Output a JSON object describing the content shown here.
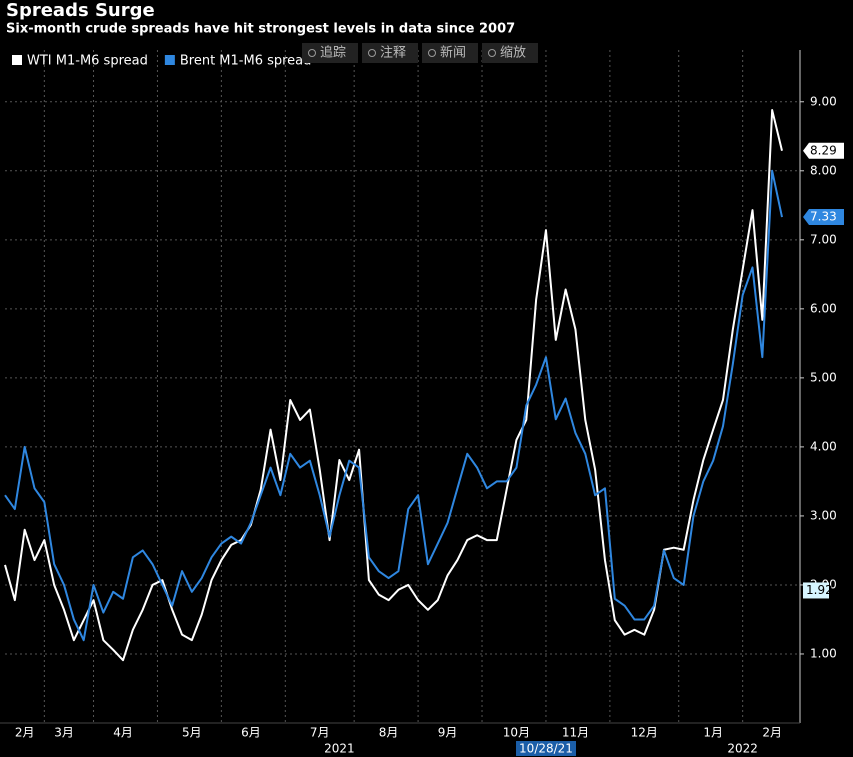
{
  "chart_data": {
    "type": "line",
    "title": "Spreads Surge",
    "subtitle": "Six-month crude spreads have hit strongest levels in data since 2007",
    "categories": [
      null,
      null,
      "2月",
      null,
      null,
      null,
      "3月",
      null,
      null,
      null,
      null,
      null,
      "4月",
      null,
      null,
      null,
      null,
      null,
      null,
      "5月",
      null,
      null,
      null,
      null,
      null,
      "6月",
      null,
      null,
      null,
      null,
      null,
      null,
      "7月",
      null,
      null,
      null,
      null,
      null,
      null,
      "8月",
      null,
      null,
      null,
      null,
      null,
      "9月",
      null,
      null,
      null,
      null,
      null,
      null,
      "10月",
      null,
      null,
      null,
      null,
      null,
      "11月",
      null,
      null,
      null,
      null,
      null,
      null,
      "12月",
      null,
      null,
      null,
      null,
      null,
      null,
      "1月",
      null,
      null,
      null,
      null,
      null,
      "2月",
      null
    ],
    "year_labels": [
      null,
      null,
      null,
      null,
      null,
      null,
      null,
      null,
      null,
      null,
      null,
      null,
      null,
      null,
      null,
      null,
      null,
      null,
      null,
      null,
      null,
      null,
      null,
      null,
      null,
      null,
      null,
      null,
      null,
      null,
      null,
      null,
      null,
      null,
      "2021",
      null,
      null,
      null,
      null,
      null,
      null,
      null,
      null,
      null,
      null,
      null,
      null,
      null,
      null,
      null,
      null,
      null,
      null,
      null,
      null,
      null,
      null,
      null,
      null,
      null,
      null,
      null,
      null,
      null,
      null,
      null,
      null,
      null,
      null,
      null,
      null,
      null,
      null,
      null,
      null,
      "2022",
      null,
      null,
      null,
      null
    ],
    "series": [
      {
        "name": "WTI M1-M6 spread",
        "color": "#ffffff",
        "values": [
          2.29,
          1.78,
          2.8,
          2.36,
          2.65,
          2.0,
          1.64,
          1.2,
          1.49,
          1.78,
          1.2,
          1.06,
          0.91,
          1.35,
          1.64,
          2.0,
          2.07,
          1.64,
          1.28,
          1.2,
          1.57,
          2.07,
          2.36,
          2.58,
          2.65,
          2.87,
          3.38,
          4.25,
          3.52,
          4.68,
          4.39,
          4.54,
          3.67,
          2.65,
          3.81,
          3.52,
          3.96,
          2.07,
          1.86,
          1.78,
          1.93,
          2.0,
          1.78,
          1.64,
          1.78,
          2.14,
          2.36,
          2.65,
          2.72,
          2.65,
          2.65,
          3.38,
          4.1,
          4.39,
          6.13,
          7.14,
          5.55,
          6.28,
          5.7,
          4.39,
          3.67,
          2.36,
          1.49,
          1.28,
          1.35,
          1.28,
          1.64,
          2.51,
          2.54,
          2.51,
          3.23,
          3.81,
          4.25,
          4.68,
          5.7,
          6.57,
          7.43,
          5.84,
          8.88,
          8.29
        ]
      },
      {
        "name": "Brent M1-M6 spread",
        "color": "#2f87e0",
        "values": [
          3.3,
          3.1,
          4.0,
          3.4,
          3.2,
          2.3,
          2.0,
          1.5,
          1.2,
          2.0,
          1.6,
          1.9,
          1.8,
          2.4,
          2.5,
          2.3,
          2.0,
          1.7,
          2.2,
          1.9,
          2.1,
          2.4,
          2.6,
          2.7,
          2.6,
          2.9,
          3.3,
          3.7,
          3.3,
          3.9,
          3.7,
          3.8,
          3.3,
          2.7,
          3.3,
          3.8,
          3.7,
          2.4,
          2.2,
          2.1,
          2.2,
          3.1,
          3.3,
          2.3,
          2.6,
          2.9,
          3.4,
          3.9,
          3.7,
          3.4,
          3.5,
          3.5,
          3.7,
          4.6,
          4.9,
          5.3,
          4.4,
          4.7,
          4.2,
          3.9,
          3.3,
          3.4,
          1.8,
          1.7,
          1.5,
          1.5,
          1.7,
          2.5,
          2.1,
          2.0,
          3.0,
          3.5,
          3.8,
          4.3,
          5.2,
          6.2,
          6.6,
          5.3,
          8.0,
          7.33
        ]
      }
    ],
    "ylim": [
      0,
      9.75
    ],
    "yticks": [
      {
        "value": 1,
        "label": "1.00"
      },
      {
        "value": 2,
        "label": "2.00"
      },
      {
        "value": 3,
        "label": "3.00"
      },
      {
        "value": 4,
        "label": "4.00"
      },
      {
        "value": 5,
        "label": "5.00"
      },
      {
        "value": 6,
        "label": "6.00"
      },
      {
        "value": 7,
        "label": "7.00"
      },
      {
        "value": 8,
        "label": "8.00"
      },
      {
        "value": 9,
        "label": "9.00"
      }
    ],
    "grid": true,
    "cursor": {
      "value": 1.92,
      "date": "10/28/21"
    }
  },
  "toolbar": [
    "追踪",
    "注释",
    "新闻",
    "缩放"
  ]
}
